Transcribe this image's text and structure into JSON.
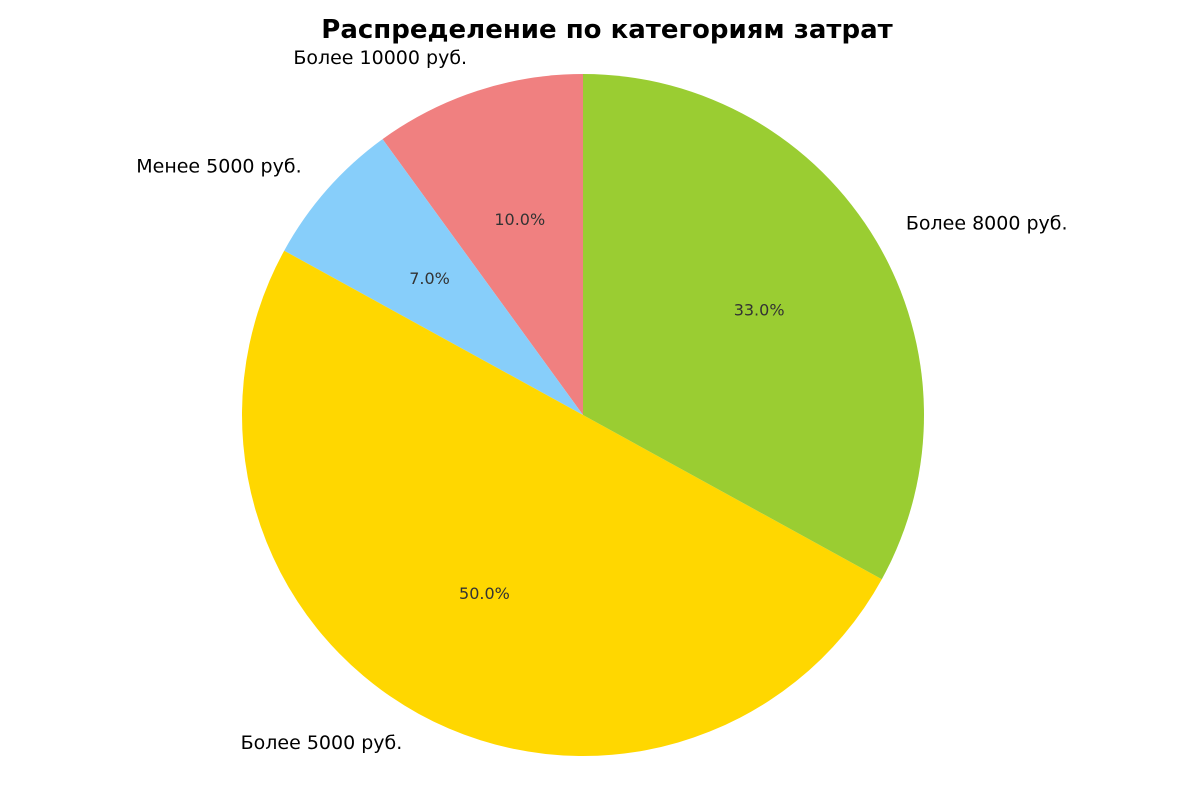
{
  "chart_data": {
    "type": "pie",
    "title": "Распределение по категориям затрат",
    "start_angle_deg": 90,
    "direction": "counterclockwise",
    "slices": [
      {
        "label": "Более 10000 руб.",
        "value": 10.0,
        "pct_label": "10.0%",
        "color": "#F08080"
      },
      {
        "label": "Менее 5000 руб.",
        "value": 7.0,
        "pct_label": "7.0%",
        "color": "#87CEFA"
      },
      {
        "label": "Более 5000 руб.",
        "value": 50.0,
        "pct_label": "50.0%",
        "color": "#FFD700"
      },
      {
        "label": "Более 8000 руб.",
        "value": 33.0,
        "pct_label": "33.0%",
        "color": "#9ACD32"
      }
    ]
  }
}
